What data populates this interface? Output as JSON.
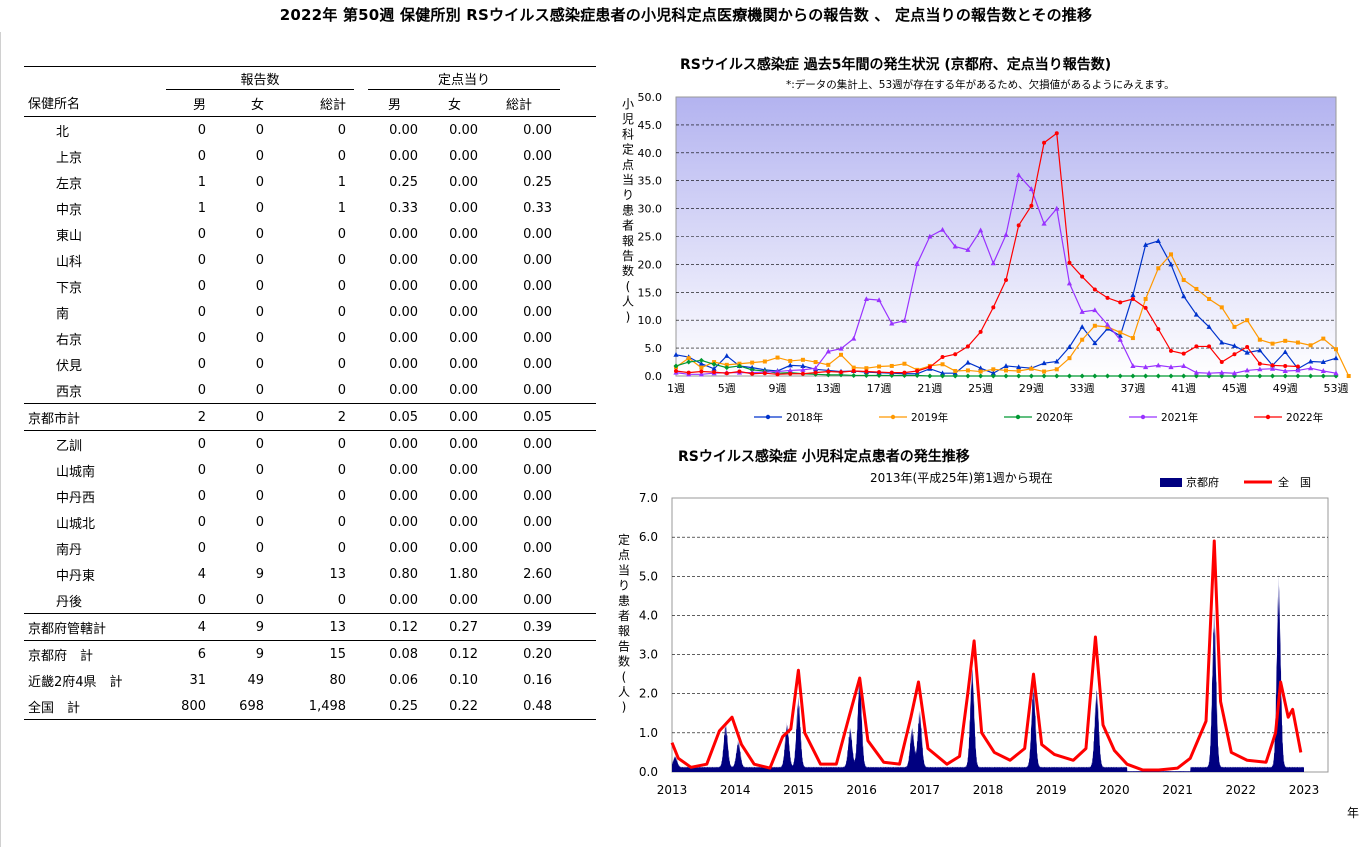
{
  "page_title": "2022年 第50週 保健所別 RSウイルス感染症患者の小児科定点医療機関からの報告数 、 定点当りの報告数とその推移",
  "table": {
    "group_headers": [
      "報告数",
      "定点当り"
    ],
    "columns": [
      "保健所名",
      "男",
      "女",
      "総計",
      "男",
      "女",
      "総計"
    ],
    "rows": [
      {
        "name": "北",
        "indent": true,
        "cells": [
          "0",
          "0",
          "0",
          "0.00",
          "0.00",
          "0.00"
        ]
      },
      {
        "name": "上京",
        "indent": true,
        "cells": [
          "0",
          "0",
          "0",
          "0.00",
          "0.00",
          "0.00"
        ]
      },
      {
        "name": "左京",
        "indent": true,
        "cells": [
          "1",
          "0",
          "1",
          "0.25",
          "0.00",
          "0.25"
        ]
      },
      {
        "name": "中京",
        "indent": true,
        "cells": [
          "1",
          "0",
          "1",
          "0.33",
          "0.00",
          "0.33"
        ]
      },
      {
        "name": "東山",
        "indent": true,
        "cells": [
          "0",
          "0",
          "0",
          "0.00",
          "0.00",
          "0.00"
        ]
      },
      {
        "name": "山科",
        "indent": true,
        "cells": [
          "0",
          "0",
          "0",
          "0.00",
          "0.00",
          "0.00"
        ]
      },
      {
        "name": "下京",
        "indent": true,
        "cells": [
          "0",
          "0",
          "0",
          "0.00",
          "0.00",
          "0.00"
        ]
      },
      {
        "name": "南",
        "indent": true,
        "cells": [
          "0",
          "0",
          "0",
          "0.00",
          "0.00",
          "0.00"
        ]
      },
      {
        "name": "右京",
        "indent": true,
        "cells": [
          "0",
          "0",
          "0",
          "0.00",
          "0.00",
          "0.00"
        ]
      },
      {
        "name": "伏見",
        "indent": true,
        "cells": [
          "0",
          "0",
          "0",
          "0.00",
          "0.00",
          "0.00"
        ]
      },
      {
        "name": "西京",
        "indent": true,
        "cells": [
          "0",
          "0",
          "0",
          "0.00",
          "0.00",
          "0.00"
        ],
        "line": "after"
      },
      {
        "name": "京都市計",
        "indent": false,
        "cells": [
          "2",
          "0",
          "2",
          "0.05",
          "0.00",
          "0.05"
        ],
        "line": "after"
      },
      {
        "name": "乙訓",
        "indent": true,
        "cells": [
          "0",
          "0",
          "0",
          "0.00",
          "0.00",
          "0.00"
        ]
      },
      {
        "name": "山城南",
        "indent": true,
        "cells": [
          "0",
          "0",
          "0",
          "0.00",
          "0.00",
          "0.00"
        ]
      },
      {
        "name": "中丹西",
        "indent": true,
        "cells": [
          "0",
          "0",
          "0",
          "0.00",
          "0.00",
          "0.00"
        ]
      },
      {
        "name": "山城北",
        "indent": true,
        "cells": [
          "0",
          "0",
          "0",
          "0.00",
          "0.00",
          "0.00"
        ]
      },
      {
        "name": "南丹",
        "indent": true,
        "cells": [
          "0",
          "0",
          "0",
          "0.00",
          "0.00",
          "0.00"
        ]
      },
      {
        "name": "中丹東",
        "indent": true,
        "cells": [
          "4",
          "9",
          "13",
          "0.80",
          "1.80",
          "2.60"
        ]
      },
      {
        "name": "丹後",
        "indent": true,
        "cells": [
          "0",
          "0",
          "0",
          "0.00",
          "0.00",
          "0.00"
        ],
        "line": "after"
      },
      {
        "name": "京都府管轄計",
        "indent": false,
        "cells": [
          "4",
          "9",
          "13",
          "0.12",
          "0.27",
          "0.39"
        ],
        "line": "after"
      },
      {
        "name": "京都府　計",
        "indent": false,
        "cells": [
          "6",
          "9",
          "15",
          "0.08",
          "0.12",
          "0.20"
        ]
      },
      {
        "name": "近畿2府4県　計",
        "indent": false,
        "cells": [
          "31",
          "49",
          "80",
          "0.06",
          "0.10",
          "0.16"
        ]
      },
      {
        "name": "全国　計",
        "indent": false,
        "cells": [
          "800",
          "698",
          "1,498",
          "0.25",
          "0.22",
          "0.48"
        ],
        "line": "after"
      }
    ]
  },
  "chart_data": [
    {
      "type": "line",
      "title": "RSウイルス感染症 過去5年間の発生状況 (京都府、定点当り報告数)",
      "subtitle": "*:データの集計上、53週が存在する年があるため、欠損値があるようにみえます。",
      "ylabel": "小児科定点当り患者報告数(人)",
      "ylim": [
        0,
        50
      ],
      "yticks": [
        0.0,
        5.0,
        10.0,
        15.0,
        20.0,
        25.0,
        30.0,
        35.0,
        40.0,
        45.0,
        50.0
      ],
      "xlim": [
        1,
        53
      ],
      "xticks": [
        "1週",
        "5週",
        "9週",
        "13週",
        "17週",
        "21週",
        "25週",
        "29週",
        "33週",
        "37週",
        "41週",
        "45週",
        "49週",
        "53週"
      ],
      "grid": true,
      "legend_position": "bottom",
      "series": [
        {
          "name": "2018年",
          "color": "#0033cc",
          "marker": "triangle",
          "values": [
            3.8,
            3.4,
            2.2,
            1.3,
            3.6,
            1.8,
            1.5,
            1.1,
            0.9,
            1.9,
            1.8,
            1.2,
            1.0,
            0.8,
            0.9,
            0.7,
            0.6,
            0.5,
            0.4,
            0.4,
            1.3,
            0.5,
            0.5,
            2.4,
            1.4,
            0.5,
            1.8,
            1.6,
            1.4,
            2.3,
            2.6,
            5.2,
            8.8,
            5.9,
            8.5,
            7.2,
            14.5,
            23.5,
            24.2,
            20.0,
            14.3,
            11.0,
            8.8,
            6.0,
            5.4,
            4.2,
            4.6,
            1.9,
            4.3,
            1.3,
            2.6,
            2.5,
            3.2
          ]
        },
        {
          "name": "2019年",
          "color": "#ff9900",
          "marker": "square",
          "values": [
            1.6,
            3.2,
            1.5,
            2.5,
            2.0,
            2.2,
            2.4,
            2.6,
            3.3,
            2.7,
            2.9,
            2.5,
            2.0,
            3.8,
            1.5,
            1.4,
            1.7,
            1.8,
            2.2,
            1.1,
            1.8,
            2.1,
            0.9,
            1.0,
            0.8,
            1.2,
            1.0,
            0.9,
            1.3,
            0.8,
            1.2,
            3.2,
            6.5,
            9.0,
            8.8,
            7.8,
            6.8,
            13.8,
            19.3,
            21.8,
            17.2,
            15.6,
            13.8,
            12.3,
            8.8,
            10.0,
            6.5,
            5.8,
            6.3,
            6.0,
            5.5,
            6.7,
            4.8,
            0.0
          ]
        },
        {
          "name": "2020年",
          "color": "#009933",
          "marker": "diamond",
          "values": [
            1.8,
            2.5,
            2.8,
            2.1,
            1.5,
            1.8,
            1.1,
            0.9,
            0.5,
            0.6,
            0.4,
            0.3,
            0.2,
            0.2,
            0.1,
            0.1,
            0.1,
            0.1,
            0.1,
            0.1,
            0.0,
            0.0,
            0.0,
            0.0,
            0.0,
            0.0,
            0.0,
            0.0,
            0.0,
            0.0,
            0.0,
            0.0,
            0.0,
            0.0,
            0.0,
            0.0,
            0.0,
            0.0,
            0.0,
            0.0,
            0.0,
            0.0,
            0.0,
            0.0,
            0.0,
            0.0,
            0.0,
            0.0,
            0.0,
            0.0,
            0.0,
            0.0,
            0.0
          ]
        },
        {
          "name": "2021年",
          "color": "#9933ff",
          "marker": "triangle",
          "values": [
            0.6,
            0.3,
            0.3,
            0.5,
            0.6,
            0.6,
            0.6,
            0.7,
            0.8,
            1.0,
            1.1,
            1.4,
            4.4,
            4.9,
            6.7,
            13.8,
            13.6,
            9.4,
            9.9,
            20.1,
            25.0,
            26.2,
            23.2,
            22.6,
            26.1,
            20.2,
            25.3,
            36.0,
            33.5,
            27.3,
            30.0,
            16.6,
            11.5,
            11.8,
            9.2,
            6.5,
            1.8,
            1.6,
            1.9,
            1.6,
            1.8,
            0.6,
            0.5,
            0.6,
            0.5,
            1.0,
            1.2,
            1.3,
            0.9,
            1.0,
            1.4,
            0.9,
            0.5
          ]
        },
        {
          "name": "2022年",
          "color": "#ff0000",
          "marker": "circle",
          "values": [
            0.9,
            0.6,
            0.8,
            0.7,
            0.5,
            0.8,
            0.4,
            0.5,
            0.3,
            0.4,
            0.4,
            0.6,
            0.8,
            0.7,
            0.9,
            0.8,
            0.7,
            0.6,
            0.6,
            0.9,
            1.6,
            3.4,
            3.9,
            5.3,
            7.9,
            12.3,
            17.2,
            27.0,
            30.5,
            41.8,
            43.5,
            20.3,
            17.8,
            15.5,
            14.0,
            13.2,
            13.8,
            12.2,
            8.4,
            4.5,
            4.0,
            5.3,
            5.3,
            2.5,
            3.9,
            5.2,
            2.2,
            1.9,
            1.8,
            1.7
          ]
        }
      ]
    },
    {
      "type": "area",
      "title": "RSウイルス感染症 小児科定点患者の発生推移",
      "subtitle": "2013年(平成25年)第1週から現在",
      "ylabel": "定点当り患者報告数(人)",
      "xlabel": "年",
      "ylim": [
        0,
        7
      ],
      "yticks": [
        "0.0",
        "1.0",
        "2.0",
        "3.0",
        "4.0",
        "5.0",
        "6.0",
        "7.0"
      ],
      "xticks": [
        "2013",
        "2014",
        "2015",
        "2016",
        "2017",
        "2018",
        "2019",
        "2020",
        "2021",
        "2022",
        "2023"
      ],
      "grid": true,
      "legend_position": "top-right",
      "series": [
        {
          "name": "京都府",
          "color": "#000080",
          "type": "area",
          "peaks": [
            [
              2013.05,
              0.25
            ],
            [
              2013.85,
              1.0
            ],
            [
              2014.05,
              0.6
            ],
            [
              2014.82,
              1.0
            ],
            [
              2015.0,
              1.6
            ],
            [
              2015.82,
              0.9
            ],
            [
              2015.97,
              2.1
            ],
            [
              2016.8,
              0.9
            ],
            [
              2016.92,
              1.3
            ],
            [
              2017.75,
              2.3
            ],
            [
              2018.72,
              1.9
            ],
            [
              2019.72,
              1.8
            ],
            [
              2021.58,
              3.6
            ],
            [
              2022.6,
              4.3
            ]
          ]
        },
        {
          "name": "全　国",
          "color": "#ff0000",
          "type": "line",
          "points": [
            [
              2013.0,
              0.75
            ],
            [
              2013.1,
              0.35
            ],
            [
              2013.3,
              0.12
            ],
            [
              2013.55,
              0.2
            ],
            [
              2013.75,
              1.05
            ],
            [
              2013.95,
              1.4
            ],
            [
              2014.1,
              0.7
            ],
            [
              2014.3,
              0.2
            ],
            [
              2014.55,
              0.1
            ],
            [
              2014.75,
              0.9
            ],
            [
              2014.88,
              1.1
            ],
            [
              2015.0,
              2.6
            ],
            [
              2015.1,
              1.0
            ],
            [
              2015.35,
              0.2
            ],
            [
              2015.6,
              0.2
            ],
            [
              2015.8,
              1.4
            ],
            [
              2015.97,
              2.4
            ],
            [
              2016.1,
              0.8
            ],
            [
              2016.35,
              0.25
            ],
            [
              2016.6,
              0.2
            ],
            [
              2016.78,
              1.4
            ],
            [
              2016.9,
              2.3
            ],
            [
              2017.05,
              0.6
            ],
            [
              2017.35,
              0.2
            ],
            [
              2017.55,
              0.4
            ],
            [
              2017.68,
              2.0
            ],
            [
              2017.78,
              3.35
            ],
            [
              2017.9,
              1.0
            ],
            [
              2018.1,
              0.5
            ],
            [
              2018.35,
              0.3
            ],
            [
              2018.58,
              0.6
            ],
            [
              2018.72,
              2.5
            ],
            [
              2018.85,
              0.7
            ],
            [
              2019.05,
              0.45
            ],
            [
              2019.35,
              0.3
            ],
            [
              2019.55,
              0.6
            ],
            [
              2019.7,
              3.45
            ],
            [
              2019.82,
              1.2
            ],
            [
              2020.0,
              0.55
            ],
            [
              2020.2,
              0.2
            ],
            [
              2020.45,
              0.05
            ],
            [
              2020.7,
              0.05
            ],
            [
              2021.0,
              0.1
            ],
            [
              2021.2,
              0.35
            ],
            [
              2021.45,
              1.3
            ],
            [
              2021.58,
              5.9
            ],
            [
              2021.68,
              1.8
            ],
            [
              2021.85,
              0.5
            ],
            [
              2022.1,
              0.3
            ],
            [
              2022.4,
              0.25
            ],
            [
              2022.55,
              1.0
            ],
            [
              2022.63,
              2.3
            ],
            [
              2022.75,
              1.4
            ],
            [
              2022.82,
              1.6
            ],
            [
              2022.95,
              0.5
            ]
          ]
        }
      ]
    }
  ]
}
